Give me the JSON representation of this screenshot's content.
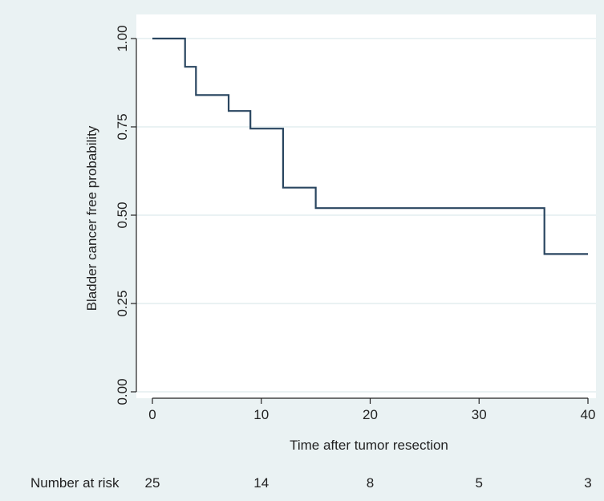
{
  "chart_data": {
    "type": "line",
    "subtype": "kaplan-meier-step",
    "title": "",
    "xlabel": "Time after tumor resection",
    "ylabel": "Bladder cancer free probability",
    "xlim": [
      0,
      40
    ],
    "ylim": [
      0,
      1
    ],
    "x_ticks": [
      0,
      10,
      20,
      30,
      40
    ],
    "x_tick_labels": [
      "0",
      "10",
      "20",
      "30",
      "40"
    ],
    "y_ticks": [
      0,
      0.25,
      0.5,
      0.75,
      1.0
    ],
    "y_tick_labels": [
      "0.00",
      "0.25",
      "0.50",
      "0.75",
      "1.00"
    ],
    "grid": true,
    "series": [
      {
        "x": [
          0,
          3,
          4,
          7,
          9,
          12,
          15,
          36,
          40
        ],
        "y": [
          1.0,
          0.92,
          0.84,
          0.795,
          0.745,
          0.578,
          0.52,
          0.39,
          0.39
        ]
      }
    ],
    "number_at_risk": {
      "label": "Number at risk",
      "times": [
        0,
        10,
        20,
        30,
        40
      ],
      "values": [
        "25",
        "14",
        "8",
        "5",
        "3"
      ]
    },
    "colors": {
      "line": "#2a4660",
      "background": "#eaf2f3",
      "plot_background": "#ffffff",
      "grid": "#eaf2f3"
    }
  }
}
